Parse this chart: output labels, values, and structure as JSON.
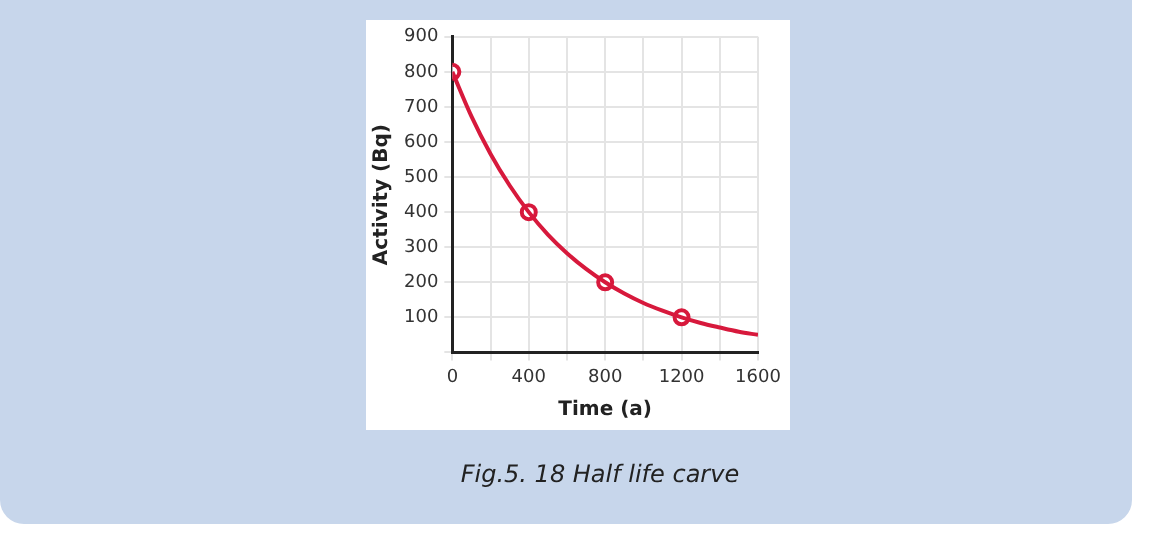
{
  "chart_data": {
    "type": "line",
    "xlabel": "Time (a)",
    "ylabel": "Activity (Bq)",
    "annotations": [
      "Fig.5. 18 Half life carve"
    ],
    "x": [
      0,
      100,
      200,
      300,
      400,
      500,
      600,
      700,
      800,
      900,
      1000,
      1100,
      1200,
      1300,
      1400,
      1500,
      1600
    ],
    "series": [
      {
        "color": "#d7193c",
        "marker": "none",
        "values": [
          800,
          673,
          566,
          476,
          400,
          336,
          283,
          238,
          200,
          168,
          141,
          119,
          100,
          84,
          71,
          59,
          50
        ]
      },
      {
        "type": "scatter",
        "color": "#d7193c",
        "marker": "circle",
        "x": [
          0,
          400,
          800,
          1200
        ],
        "values": [
          800,
          400,
          200,
          100
        ]
      }
    ],
    "xlim": [
      0,
      1600
    ],
    "xticks": [
      0,
      {
        "value": 200,
        "label": null
      },
      400,
      {
        "value": 600,
        "label": null
      },
      800,
      {
        "value": 1000,
        "label": null
      },
      1200,
      {
        "value": 1400,
        "label": null
      },
      1600
    ],
    "ylim": [
      0,
      900
    ],
    "yticks": [
      {
        "value": 0,
        "label": null
      },
      100,
      200,
      300,
      400,
      500,
      600,
      700,
      800,
      900
    ],
    "grid": true
  }
}
